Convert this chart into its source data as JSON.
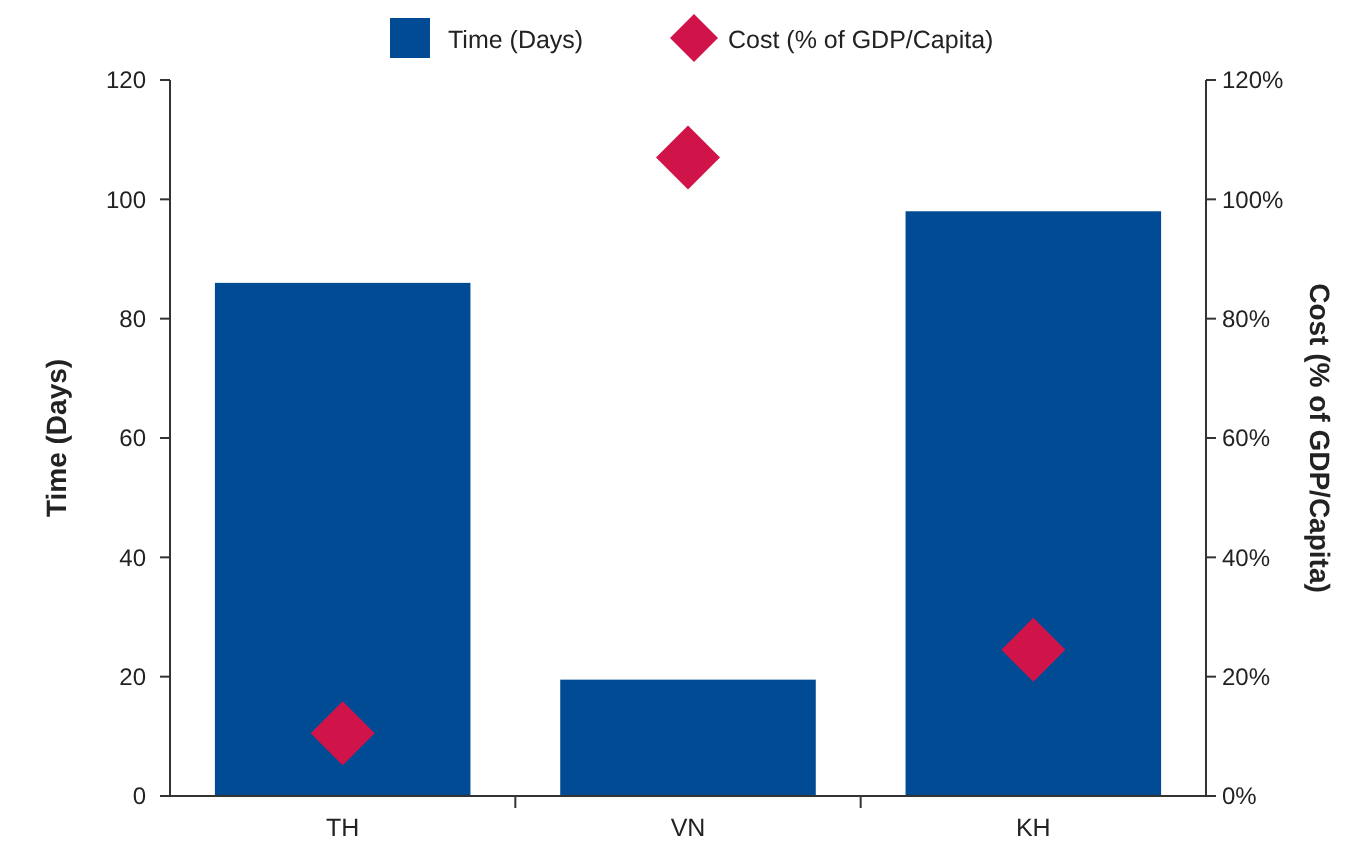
{
  "chart_data": {
    "type": "bar",
    "categories": [
      "TH",
      "VN",
      "KH"
    ],
    "ylabel": "Time (Days)",
    "y2label": "Cost (% of GDP/Capita)",
    "series": [
      {
        "name": "Time (Days)",
        "color": "#004b93",
        "values": [
          86,
          19.5,
          98
        ]
      },
      {
        "name": "Cost (% of GDP/Capita)",
        "type": "scatter",
        "axis": "y2",
        "marker": "diamond",
        "color": "#d0144a",
        "values": [
          10.5,
          107,
          24.5
        ]
      }
    ],
    "ylim": [
      0,
      120
    ],
    "yticks": [
      0,
      20,
      40,
      60,
      80,
      100,
      120
    ],
    "y2lim": [
      0,
      120
    ],
    "y2ticks": [
      {
        "value": 0,
        "label": "0%"
      },
      {
        "value": 20,
        "label": "20%"
      },
      {
        "value": 40,
        "label": "40%"
      },
      {
        "value": 60,
        "label": "60%"
      },
      {
        "value": 80,
        "label": "80%"
      },
      {
        "value": 100,
        "label": "100%"
      },
      {
        "value": 120,
        "label": "120%"
      }
    ],
    "legend": "top",
    "grid": false
  }
}
